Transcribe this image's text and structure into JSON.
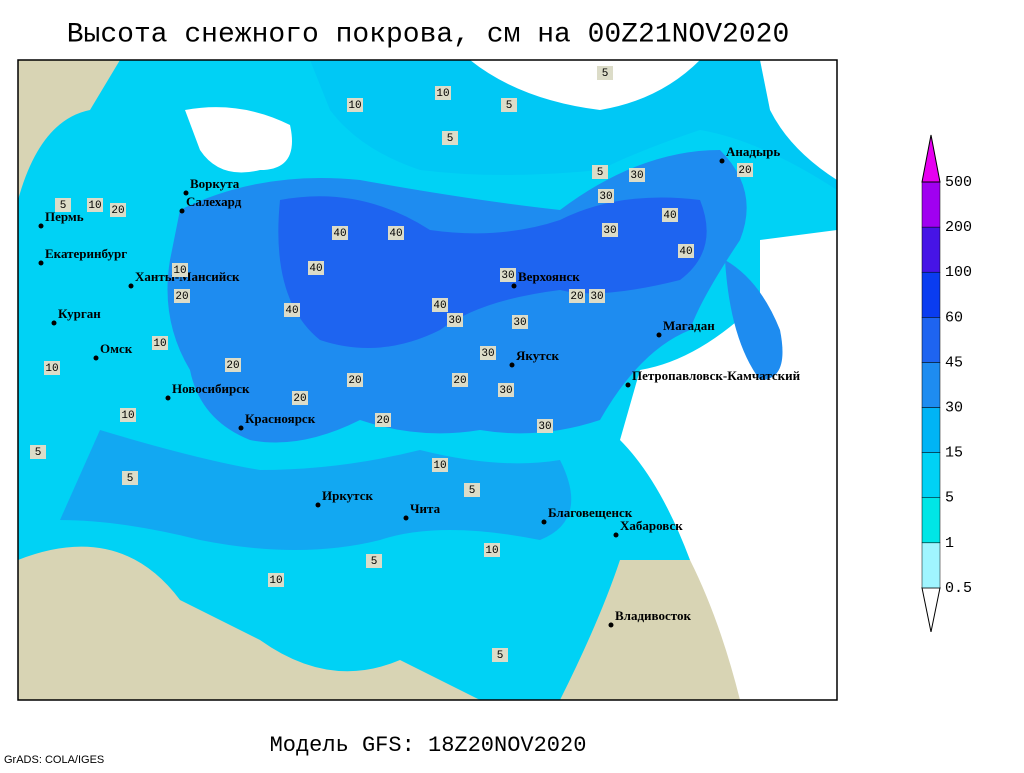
{
  "title": "Высота снежного покрова, см на 00Z21NOV2020",
  "subtitle": "Модель GFS: 18Z20NOV2020",
  "credit": "GrADS: COLA/IGES",
  "legend": {
    "levels": [
      0.5,
      1,
      5,
      15,
      30,
      45,
      60,
      100,
      200,
      500
    ],
    "colors": [
      "#ffffff",
      "#a0f5ff",
      "#00e6e6",
      "#00d2f5",
      "#00b4f5",
      "#1e8cf0",
      "#1e64f0",
      "#0a3cf0",
      "#4614e6",
      "#a000f0",
      "#e600f0"
    ]
  },
  "cities": [
    "Воркута",
    "Салехард",
    "Пермь",
    "Екатеринбург",
    "Ханты-Мансийск",
    "Курган",
    "Омск",
    "Новосибирск",
    "Красноярск",
    "Иркутск",
    "Чита",
    "Верхоянск",
    "Якутск",
    "Магадан",
    "Анадырь",
    "Петропавловск-Камчатский",
    "Благовещенск",
    "Хабаровск",
    "Владивосток"
  ],
  "contour_labels": [
    5,
    10,
    5,
    5,
    10,
    20,
    5,
    10,
    10,
    20,
    40,
    40,
    40,
    40,
    40,
    30,
    30,
    30,
    20,
    30,
    30,
    20,
    20,
    30,
    30,
    20,
    10,
    10,
    5,
    10,
    20,
    20,
    30,
    30,
    40,
    40,
    30,
    20,
    5,
    10,
    5,
    5,
    10,
    5,
    5,
    10
  ]
}
